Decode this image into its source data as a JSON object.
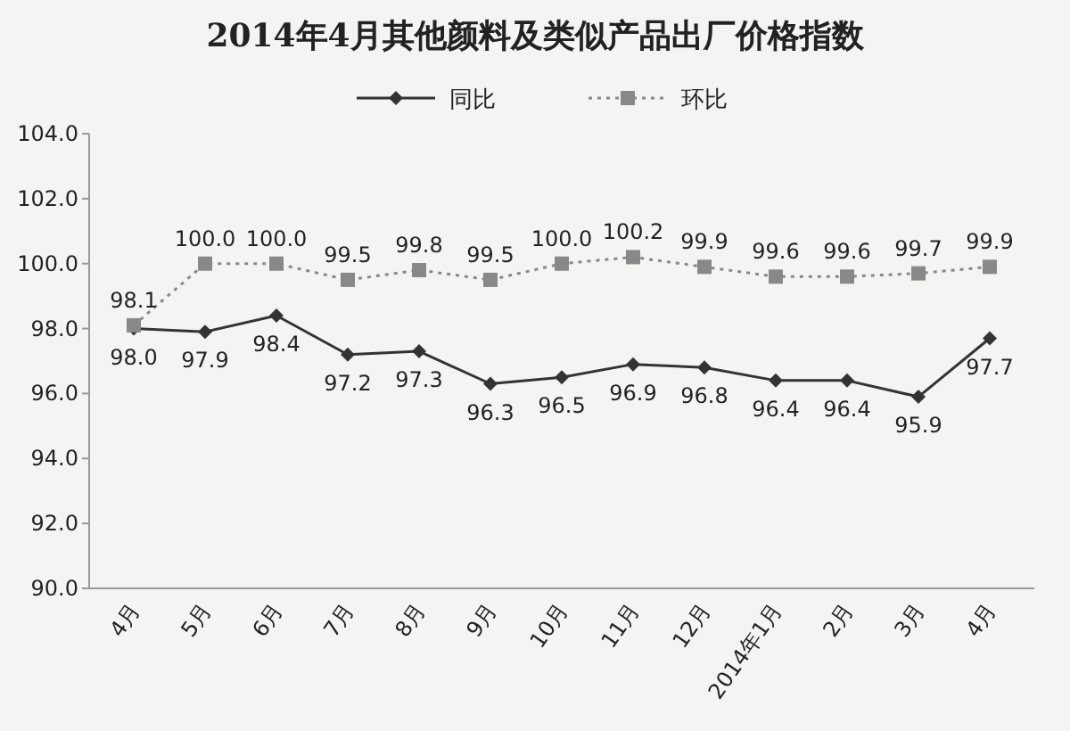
{
  "chart_data": {
    "type": "line",
    "title": "2014年4月其他颜料及类似产品出厂价格指数",
    "categories": [
      "4月",
      "5月",
      "6月",
      "7月",
      "8月",
      "9月",
      "10月",
      "11月",
      "12月",
      "2014年1月",
      "2月",
      "3月",
      "4月"
    ],
    "series": [
      {
        "name": "同比",
        "color": "#333333",
        "marker": "diamond",
        "line_style": "solid",
        "values": [
          98.0,
          97.9,
          98.4,
          97.2,
          97.3,
          96.3,
          96.5,
          96.9,
          96.8,
          96.4,
          96.4,
          95.9,
          97.7
        ],
        "value_labels": [
          "98.0",
          "97.9",
          "98.4",
          "97.2",
          "97.3",
          "96.3",
          "96.5",
          "96.9",
          "96.8",
          "96.4",
          "96.4",
          "95.9",
          "97.7"
        ]
      },
      {
        "name": "环比",
        "color": "#888888",
        "marker": "square",
        "line_style": "dotted",
        "values": [
          98.1,
          100.0,
          100.0,
          99.5,
          99.8,
          99.5,
          100.0,
          100.2,
          99.9,
          99.6,
          99.6,
          99.7,
          99.9
        ],
        "value_labels": [
          "98.1",
          "100.0",
          "100.0",
          "99.5",
          "99.8",
          "99.5",
          "100.0",
          "100.2",
          "99.9",
          "99.6",
          "99.6",
          "99.7",
          "99.9"
        ]
      }
    ],
    "ylim": [
      90,
      104
    ],
    "yticks": [
      {
        "value": 90,
        "label": "90.0"
      },
      {
        "value": 92,
        "label": "92.0"
      },
      {
        "value": 94,
        "label": "94.0"
      },
      {
        "value": 96,
        "label": "96.0"
      },
      {
        "value": 98,
        "label": "98.0"
      },
      {
        "value": 100,
        "label": "100.0"
      },
      {
        "value": 102,
        "label": "102.0"
      },
      {
        "value": 104,
        "label": "104.0"
      }
    ],
    "legend": "top"
  }
}
